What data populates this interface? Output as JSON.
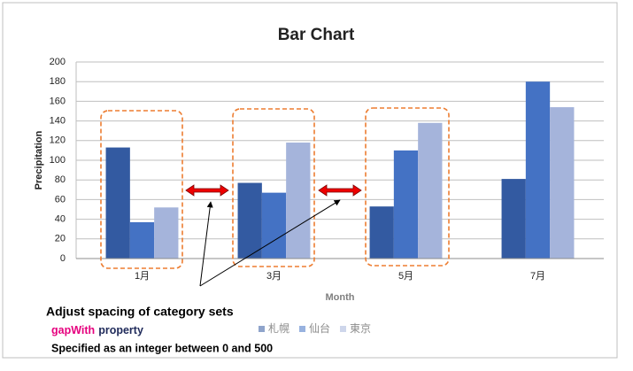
{
  "chart_data": {
    "type": "bar",
    "title": "Bar Chart",
    "x_label": "Month",
    "y_label": "Precipitation",
    "categories": [
      "1月",
      "3月",
      "5月",
      "7月"
    ],
    "series": [
      {
        "name": "札幌",
        "color": "#335aa1",
        "values": [
          113,
          77,
          53,
          81
        ]
      },
      {
        "name": "仙台",
        "color": "#4472c4",
        "values": [
          37,
          67,
          110,
          180
        ]
      },
      {
        "name": "東京",
        "color": "#a5b4db",
        "values": [
          52,
          118,
          138,
          154
        ]
      }
    ],
    "ylim": [
      0,
      200
    ],
    "yticks": [
      0,
      20,
      40,
      60,
      80,
      100,
      120,
      140,
      160,
      180,
      200
    ],
    "grid": true,
    "legend": "bottom"
  },
  "annotations": {
    "heading": "Adjust spacing of category sets",
    "property_name": "gapWith",
    "property_word": "property",
    "range_note": "Specified as an integer between 0 and 500"
  }
}
